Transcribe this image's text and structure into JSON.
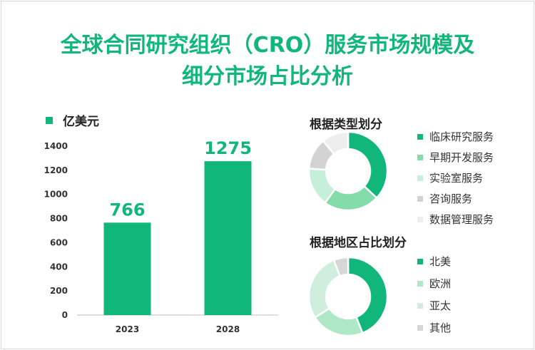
{
  "title_line1": "全球合同研究组织（CRO）服务市场规模及",
  "title_line2": "细分市场占比分析",
  "colors": {
    "accent": "#11b77a",
    "bar": "#11b77a",
    "type_slices": [
      "#11b77a",
      "#83dcaa",
      "#c6efd9",
      "#d3d3d3",
      "#eeeeee"
    ],
    "region_slices": [
      "#11b77a",
      "#aee8c7",
      "#cfeedd",
      "#d6d6d6"
    ]
  },
  "chart_data": [
    {
      "type": "bar",
      "legend": "亿美元",
      "categories": [
        "2023",
        "2028"
      ],
      "values": [
        766,
        1275
      ],
      "data_labels": [
        "766",
        "1275"
      ],
      "ylim": [
        0,
        1400
      ],
      "yticks": [
        "0",
        "200",
        "400",
        "600",
        "800",
        "1000",
        "1200",
        "1400"
      ],
      "grid": false
    },
    {
      "type": "pie",
      "title": "根据类型划分",
      "categories": [
        "临床研究服务",
        "早期开发服务",
        "实验室服务",
        "咨询服务",
        "数据管理服务"
      ],
      "values": [
        0.37,
        0.23,
        0.16,
        0.13,
        0.11
      ],
      "legend_position": "right"
    },
    {
      "type": "pie",
      "title": "根据地区占比划分",
      "categories": [
        "北美",
        "欧洲",
        "亚太",
        "其他"
      ],
      "values": [
        0.44,
        0.22,
        0.28,
        0.06
      ],
      "legend_position": "right"
    }
  ]
}
